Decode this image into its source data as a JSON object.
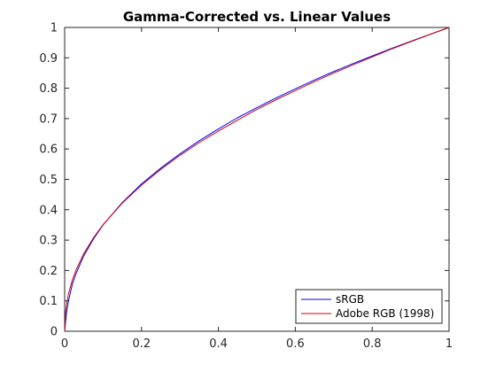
{
  "chart_data": {
    "type": "line",
    "title": "Gamma-Corrected vs. Linear Values",
    "xlabel": "",
    "ylabel": "",
    "xlim": [
      0,
      1
    ],
    "ylim": [
      0,
      1
    ],
    "x_ticks": [
      0,
      0.2,
      0.4,
      0.6,
      0.8,
      1
    ],
    "x_tick_labels": [
      "0",
      "0.2",
      "0.4",
      "0.6",
      "0.8",
      "1"
    ],
    "y_ticks": [
      0,
      0.1,
      0.2,
      0.3,
      0.4,
      0.5,
      0.6,
      0.7,
      0.8,
      0.9,
      1
    ],
    "y_tick_labels": [
      "0",
      "0.1",
      "0.2",
      "0.3",
      "0.4",
      "0.5",
      "0.6",
      "0.7",
      "0.8",
      "0.9",
      "1"
    ],
    "grid": false,
    "box": true,
    "legend_position": "bottom-right",
    "x": [
      0,
      0.002,
      0.005,
      0.01,
      0.02,
      0.03,
      0.05,
      0.075,
      0.1,
      0.15,
      0.2,
      0.25,
      0.3,
      0.35,
      0.4,
      0.45,
      0.5,
      0.55,
      0.6,
      0.65,
      0.7,
      0.75,
      0.8,
      0.85,
      0.9,
      0.95,
      1
    ],
    "series": [
      {
        "name": "sRGB",
        "color": "#0000ff",
        "values": [
          0,
          0.026,
          0.063,
          0.1,
          0.155,
          0.191,
          0.249,
          0.304,
          0.35,
          0.424,
          0.485,
          0.537,
          0.584,
          0.627,
          0.666,
          0.703,
          0.736,
          0.768,
          0.798,
          0.827,
          0.855,
          0.881,
          0.906,
          0.931,
          0.954,
          0.977,
          1
        ]
      },
      {
        "name": "Adobe RGB (1998)",
        "color": "#cc0000",
        "values": [
          0,
          0.059,
          0.09,
          0.123,
          0.169,
          0.203,
          0.256,
          0.308,
          0.351,
          0.422,
          0.481,
          0.533,
          0.579,
          0.621,
          0.659,
          0.695,
          0.73,
          0.762,
          0.792,
          0.822,
          0.85,
          0.877,
          0.903,
          0.929,
          0.953,
          0.977,
          1
        ]
      }
    ]
  }
}
